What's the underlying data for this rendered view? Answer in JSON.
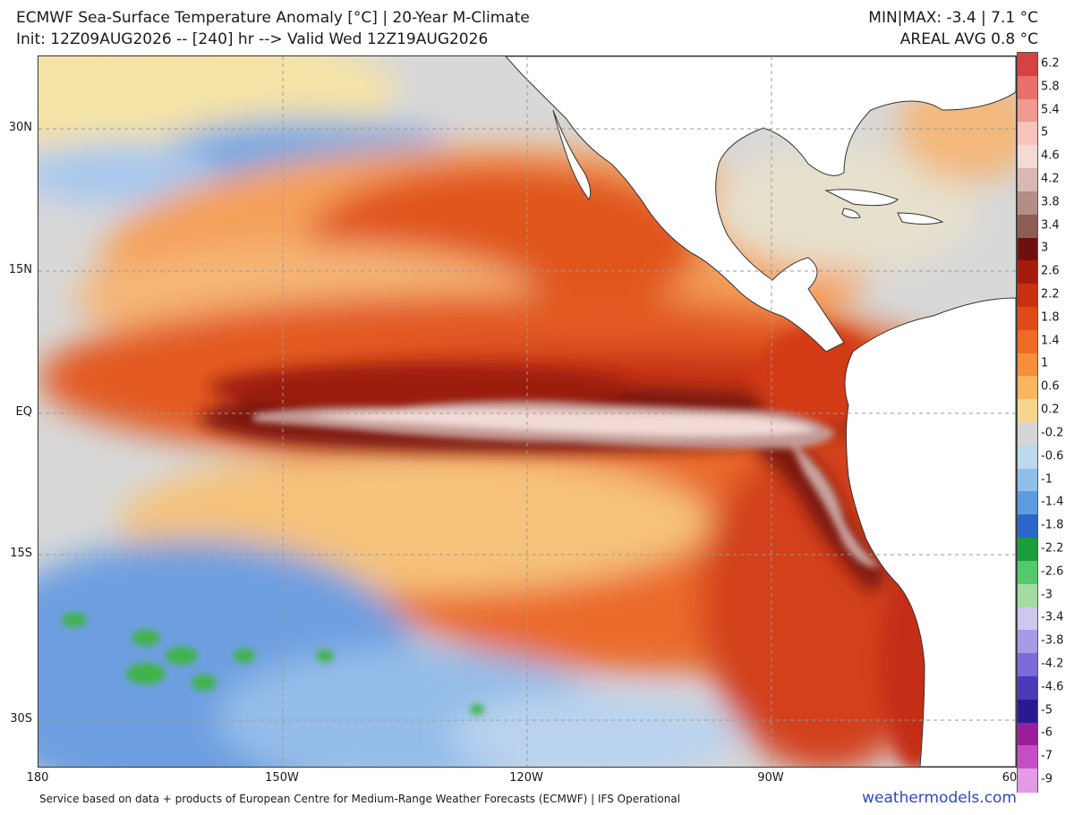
{
  "header": {
    "title_line1": "ECMWF Sea-Surface Temperature Anomaly [°C] | 20-Year M-Climate",
    "title_line2": "Init: 12Z09AUG2026 -- [240] hr --> Valid Wed 12Z19AUG2026",
    "minmax": "MIN|MAX: -3.4 | 7.1 °C",
    "areal_avg": "AREAL AVG 0.8 °C"
  },
  "axes": {
    "lat_labels": [
      "30N",
      "15N",
      "EQ",
      "15S",
      "30S"
    ],
    "lon_labels": [
      "180",
      "150W",
      "120W",
      "90W",
      "60"
    ]
  },
  "colorbar": {
    "labels": [
      "6.2",
      "5.8",
      "5.4",
      "5",
      "4.6",
      "4.2",
      "3.8",
      "3.4",
      "3",
      "2.6",
      "2.2",
      "1.8",
      "1.4",
      "1",
      "0.6",
      "0.2",
      "-0.2",
      "-0.6",
      "-1",
      "-1.4",
      "-1.8",
      "-2.2",
      "-2.6",
      "-3",
      "-3.4",
      "-3.8",
      "-4.2",
      "-4.6",
      "-5",
      "-6",
      "-7",
      "-9"
    ],
    "colors": [
      "#d64141",
      "#e8706a",
      "#f09a92",
      "#f7c3bd",
      "#f3dad7",
      "#d9b8b3",
      "#b58d88",
      "#8e5c57",
      "#6d1010",
      "#a51b0c",
      "#c8300f",
      "#de4b18",
      "#ef6a26",
      "#f78e3a",
      "#fab55f",
      "#f7d78f",
      "#d6d6d6",
      "#bdd9ee",
      "#8fc0ea",
      "#5c9ce0",
      "#2c66c8",
      "#1c9c3a",
      "#54c86a",
      "#a3dca0",
      "#cfc7ef",
      "#a79ae6",
      "#7d6ad8",
      "#4a39b8",
      "#2a1a90",
      "#9a1e9a",
      "#c44fc4",
      "#e39be3"
    ]
  },
  "footer": {
    "credit": "Service based on data + products of European Centre for Medium-Range Weather Forecasts (ECMWF) | IFS Operational",
    "brand": "weathermodels.com"
  }
}
